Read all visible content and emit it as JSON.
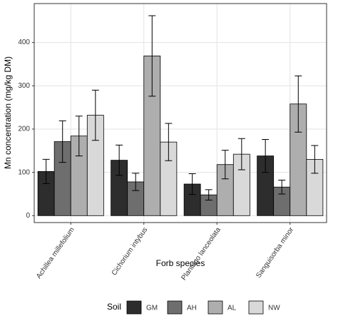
{
  "chart_data": {
    "type": "bar",
    "x_label": "Forb species",
    "y_label": "Mn concentration (mg/kg DM)",
    "categories": [
      "Achillea millefolium",
      "Cichorium intybus",
      "Plantago lanceolata",
      "Sanguisorba minor"
    ],
    "series": [
      {
        "name": "GM",
        "color": "#2d2d2d",
        "values": [
          102,
          128,
          73,
          138
        ],
        "errors": [
          28,
          35,
          24,
          38
        ]
      },
      {
        "name": "AH",
        "color": "#6e6e6e",
        "values": [
          171,
          78,
          48,
          66
        ],
        "errors": [
          48,
          20,
          12,
          16
        ]
      },
      {
        "name": "AL",
        "color": "#aeaeae",
        "values": [
          184,
          369,
          118,
          258
        ],
        "errors": [
          46,
          93,
          33,
          65
        ]
      },
      {
        "name": "NW",
        "color": "#d9d9d9",
        "values": [
          232,
          170,
          142,
          130
        ],
        "errors": [
          58,
          43,
          36,
          32
        ]
      }
    ],
    "legend_title": "Soil",
    "ylim": [
      -16,
      490
    ],
    "yticks": [
      0,
      100,
      200,
      300,
      400
    ],
    "grid": true
  }
}
